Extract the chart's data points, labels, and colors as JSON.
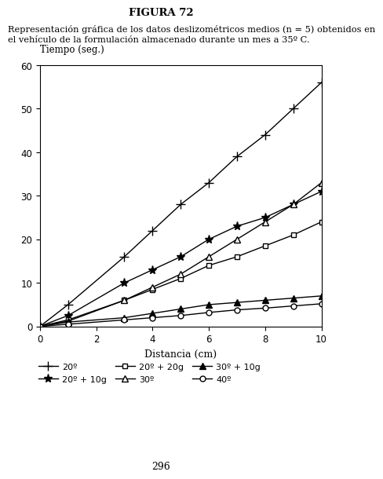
{
  "title": "FIGURA 72",
  "description_line1": "Representación gráfica de los datos deslizométricos medios (n = 5) obtenidos en",
  "description_line2": "el vehículo de la formulación almacenado durante un mes a 35º C.",
  "xlabel": "Distancia (cm)",
  "ylabel": "Tiempo (seg.)",
  "xlim": [
    0,
    10
  ],
  "ylim": [
    0,
    60
  ],
  "xticks": [
    0,
    2,
    4,
    6,
    8,
    10
  ],
  "yticks": [
    0,
    10,
    20,
    30,
    40,
    50,
    60
  ],
  "page_number": "296",
  "series": [
    {
      "label": "20º",
      "x": [
        0,
        1,
        3,
        4,
        5,
        6,
        7,
        8,
        9,
        10
      ],
      "y": [
        0,
        5,
        16,
        22,
        28,
        33,
        39,
        44,
        50,
        56
      ],
      "marker": "+",
      "linestyle": "-",
      "color": "#000000",
      "markersize": 8,
      "markerfacecolor": "#000000",
      "linewidth": 1.0
    },
    {
      "label": "20º + 10g",
      "x": [
        0,
        1,
        3,
        4,
        5,
        6,
        7,
        8,
        9,
        10
      ],
      "y": [
        0,
        2.5,
        10,
        13,
        16,
        20,
        23,
        25,
        28,
        31
      ],
      "marker": "*",
      "linestyle": "-",
      "color": "#000000",
      "markersize": 8,
      "markerfacecolor": "#000000",
      "linewidth": 1.0
    },
    {
      "label": "20º + 20g",
      "x": [
        0,
        1,
        3,
        4,
        5,
        6,
        7,
        8,
        9,
        10
      ],
      "y": [
        0,
        1.5,
        6,
        8.5,
        11,
        14,
        16,
        18.5,
        21,
        24
      ],
      "marker": "s",
      "linestyle": "-",
      "color": "#000000",
      "markersize": 5,
      "markerfacecolor": "white",
      "linewidth": 1.0
    },
    {
      "label": "30º",
      "x": [
        0,
        1,
        3,
        4,
        5,
        6,
        7,
        8,
        9,
        10
      ],
      "y": [
        0,
        1.2,
        6,
        9,
        12,
        16,
        20,
        24,
        28,
        33
      ],
      "marker": "^",
      "linestyle": "-",
      "color": "#000000",
      "markersize": 6,
      "markerfacecolor": "white",
      "linewidth": 1.0
    },
    {
      "label": "30º + 10g",
      "x": [
        0,
        1,
        3,
        4,
        5,
        6,
        7,
        8,
        9,
        10
      ],
      "y": [
        0,
        1.0,
        2.0,
        3.0,
        4.0,
        5.0,
        5.5,
        6.0,
        6.5,
        7.0
      ],
      "marker": "^",
      "linestyle": "-",
      "color": "#000000",
      "markersize": 6,
      "markerfacecolor": "#000000",
      "linewidth": 1.0
    },
    {
      "label": "40º",
      "x": [
        0,
        1,
        3,
        4,
        5,
        6,
        7,
        8,
        9,
        10
      ],
      "y": [
        0,
        0.5,
        1.5,
        2.0,
        2.5,
        3.2,
        3.8,
        4.2,
        4.7,
        5.2
      ],
      "marker": "o",
      "linestyle": "-",
      "color": "#000000",
      "markersize": 5,
      "markerfacecolor": "white",
      "linewidth": 1.0
    }
  ],
  "figure_bg": "#ffffff",
  "axes_bg": "#ffffff"
}
